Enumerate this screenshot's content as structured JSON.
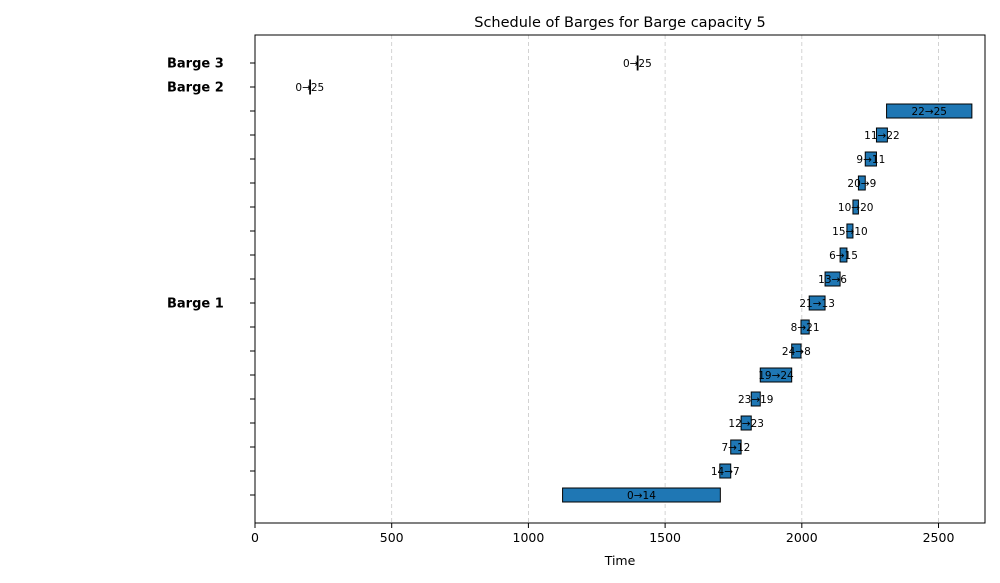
{
  "chart_data": {
    "type": "gantt",
    "title": "Schedule of Barges for Barge capacity 5",
    "xlabel": "Time",
    "ylabel": "",
    "xlim": [
      0,
      2670
    ],
    "x_ticks": [
      0,
      500,
      1000,
      1500,
      2000,
      2500
    ],
    "grid": "x-dashed",
    "bar_color": "#1f77b4",
    "row_labels": [
      {
        "label": "Barge 3",
        "row": 18
      },
      {
        "label": "Barge 2",
        "row": 17
      },
      {
        "label": "Barge 1",
        "row": 8
      }
    ],
    "tasks": [
      {
        "label": "0→14",
        "start": 1125,
        "end": 1702,
        "row": 0
      },
      {
        "label": "14→7",
        "start": 1700,
        "end": 1740,
        "row": 1
      },
      {
        "label": "7→12",
        "start": 1740,
        "end": 1778,
        "row": 2
      },
      {
        "label": "12→23",
        "start": 1778,
        "end": 1815,
        "row": 3
      },
      {
        "label": "23→19",
        "start": 1815,
        "end": 1848,
        "row": 4
      },
      {
        "label": "19→24",
        "start": 1848,
        "end": 1963,
        "row": 5
      },
      {
        "label": "24→8",
        "start": 1963,
        "end": 1997,
        "row": 6
      },
      {
        "label": "8→21",
        "start": 1997,
        "end": 2027,
        "row": 7
      },
      {
        "label": "21→13",
        "start": 2027,
        "end": 2085,
        "row": 8
      },
      {
        "label": "13→6",
        "start": 2085,
        "end": 2140,
        "row": 9
      },
      {
        "label": "6→15",
        "start": 2140,
        "end": 2165,
        "row": 10
      },
      {
        "label": "15→10",
        "start": 2165,
        "end": 2187,
        "row": 11
      },
      {
        "label": "10→20",
        "start": 2187,
        "end": 2207,
        "row": 12
      },
      {
        "label": "20→9",
        "start": 2207,
        "end": 2232,
        "row": 13
      },
      {
        "label": "9→11",
        "start": 2232,
        "end": 2273,
        "row": 14
      },
      {
        "label": "11→22",
        "start": 2273,
        "end": 2313,
        "row": 15
      },
      {
        "label": "22→25",
        "start": 2310,
        "end": 2622,
        "row": 16
      },
      {
        "label": "0→25",
        "start": 200,
        "end": 201,
        "row": 17
      },
      {
        "label": "0→25",
        "start": 1398,
        "end": 1399,
        "row": 18
      }
    ]
  }
}
